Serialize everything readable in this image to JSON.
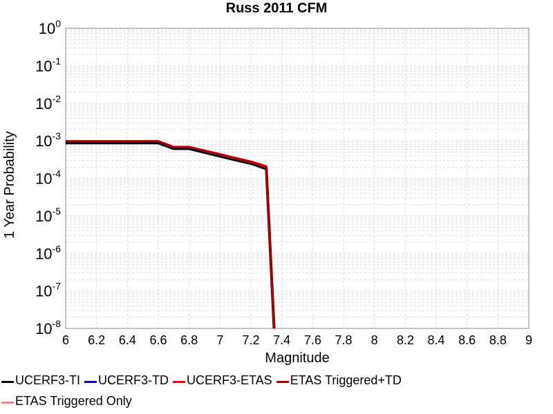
{
  "chart_data": {
    "type": "line",
    "title": "Russ 2011 CFM",
    "xlabel": "Magnitude",
    "ylabel": "1 Year Probability",
    "xlim": [
      6,
      9
    ],
    "ylim": [
      1e-08,
      1
    ],
    "yscale": "log",
    "grid": true,
    "legend_position": "bottom",
    "x_ticks": [
      "6",
      "6.2",
      "6.4",
      "6.6",
      "6.8",
      "7",
      "7.2",
      "7.4",
      "7.6",
      "7.8",
      "8",
      "8.2",
      "8.4",
      "8.6",
      "8.8",
      "9"
    ],
    "y_ticks": [
      {
        "base": "10",
        "exp": "0"
      },
      {
        "base": "10",
        "exp": "-1"
      },
      {
        "base": "10",
        "exp": "-2"
      },
      {
        "base": "10",
        "exp": "-3"
      },
      {
        "base": "10",
        "exp": "-4"
      },
      {
        "base": "10",
        "exp": "-5"
      },
      {
        "base": "10",
        "exp": "-6"
      },
      {
        "base": "10",
        "exp": "-7"
      },
      {
        "base": "10",
        "exp": "-8"
      }
    ],
    "series": [
      {
        "name": "UCERF3-TI",
        "color": "#000000",
        "x": [
          6.0,
          6.6,
          6.7,
          6.8,
          7.0,
          7.1,
          7.2,
          7.3,
          7.35
        ],
        "y": [
          0.00088,
          0.00088,
          0.00062,
          0.00062,
          0.00039,
          0.00031,
          0.00025,
          0.00018,
          1e-10
        ]
      },
      {
        "name": "UCERF3-TD",
        "color": "#0000cc",
        "x": [
          6.0,
          6.6,
          6.7,
          6.8,
          7.0,
          7.1,
          7.2,
          7.3,
          7.35
        ],
        "y": [
          0.00096,
          0.00096,
          0.00067,
          0.00067,
          0.00042,
          0.00034,
          0.00027,
          0.0002,
          1e-10
        ]
      },
      {
        "name": "UCERF3-ETAS",
        "color": "#ff0000",
        "x": [
          6.0,
          6.6,
          6.7,
          6.8,
          7.0,
          7.1,
          7.2,
          7.3,
          7.35
        ],
        "y": [
          0.00097,
          0.00097,
          0.00068,
          0.00068,
          0.00043,
          0.00034,
          0.00027,
          0.0002,
          1e-10
        ]
      },
      {
        "name": "ETAS Triggered+TD",
        "color": "#aa0000",
        "x": [
          6.0,
          6.6,
          6.7,
          6.8,
          7.0,
          7.1,
          7.2,
          7.3,
          7.35
        ],
        "y": [
          0.00098,
          0.00098,
          0.00069,
          0.00069,
          0.00044,
          0.00035,
          0.00028,
          0.00021,
          1e-10
        ]
      },
      {
        "name": "ETAS Triggered Only",
        "color": "#ff8080",
        "x": [],
        "y": []
      }
    ]
  }
}
